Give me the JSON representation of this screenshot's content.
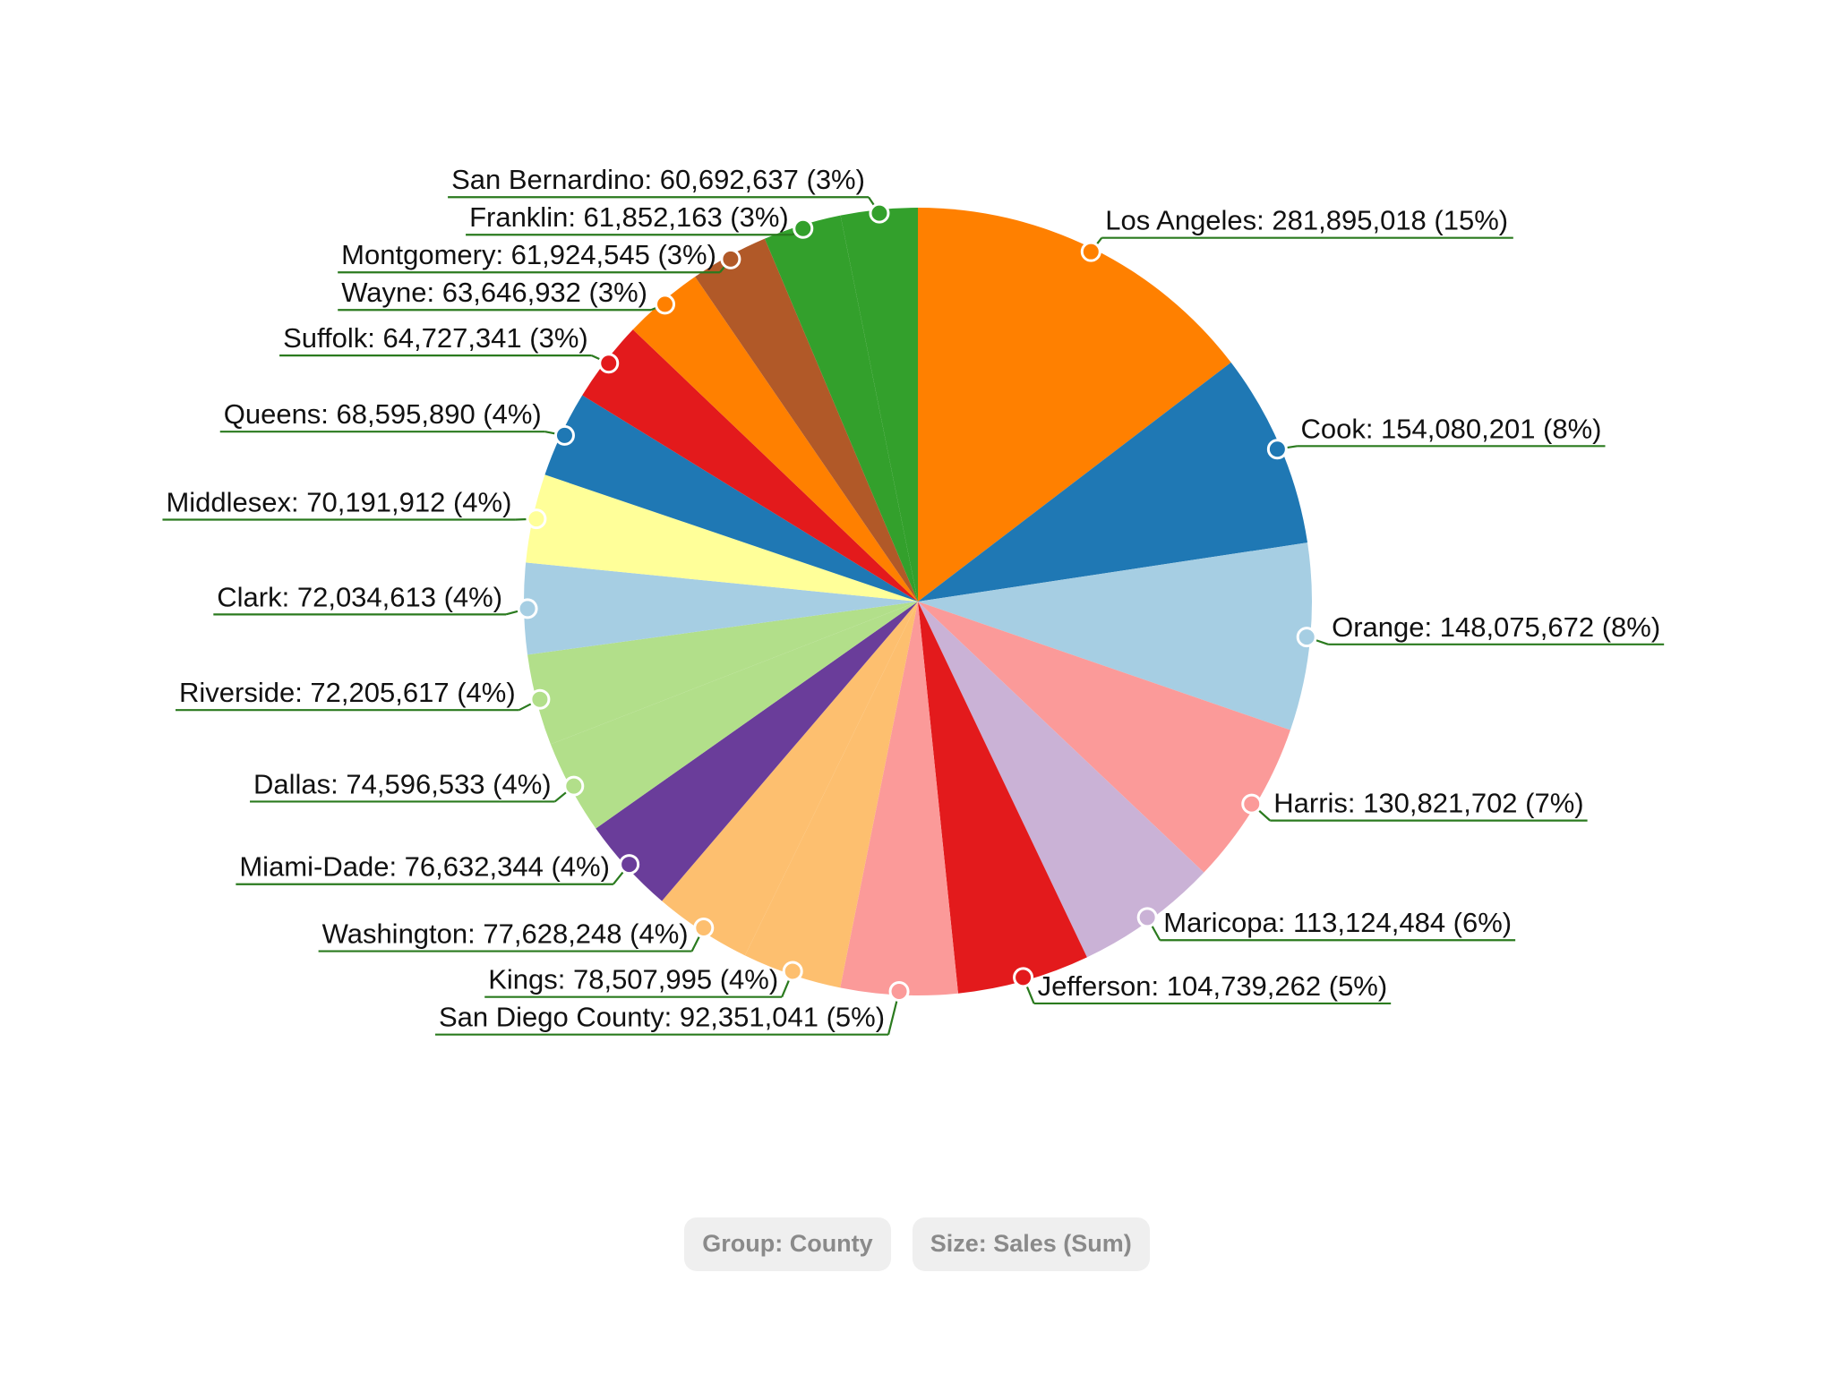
{
  "chart_data": {
    "type": "pie",
    "title": "",
    "slices": [
      {
        "label": "Los Angeles",
        "value": 281895018,
        "percent": "15%",
        "color": "#ff8000"
      },
      {
        "label": "Cook",
        "value": 154080201,
        "percent": "8%",
        "color": "#1f78b4"
      },
      {
        "label": "Orange",
        "value": 148075672,
        "percent": "8%",
        "color": "#a6cee3"
      },
      {
        "label": "Harris",
        "value": 130821702,
        "percent": "7%",
        "color": "#fb9a99"
      },
      {
        "label": "Maricopa",
        "value": 113124484,
        "percent": "6%",
        "color": "#cab2d6"
      },
      {
        "label": "Jefferson",
        "value": 104739262,
        "percent": "5%",
        "color": "#e31a1c"
      },
      {
        "label": "San Diego County",
        "value": 92351041,
        "percent": "5%",
        "color": "#fb9a99"
      },
      {
        "label": "Kings",
        "value": 78507995,
        "percent": "4%",
        "color": "#fdbf6f"
      },
      {
        "label": "Washington",
        "value": 77628248,
        "percent": "4%",
        "color": "#fdbf6f"
      },
      {
        "label": "Miami-Dade",
        "value": 76632344,
        "percent": "4%",
        "color": "#6a3d9a"
      },
      {
        "label": "Dallas",
        "value": 74596533,
        "percent": "4%",
        "color": "#b2df8a"
      },
      {
        "label": "Riverside",
        "value": 72205617,
        "percent": "4%",
        "color": "#b2df8a"
      },
      {
        "label": "Clark",
        "value": 72034613,
        "percent": "4%",
        "color": "#a6cee3"
      },
      {
        "label": "Middlesex",
        "value": 70191912,
        "percent": "4%",
        "color": "#ffff99"
      },
      {
        "label": "Queens",
        "value": 68595890,
        "percent": "4%",
        "color": "#1f78b4"
      },
      {
        "label": "Suffolk",
        "value": 64727341,
        "percent": "3%",
        "color": "#e31a1c"
      },
      {
        "label": "Wayne",
        "value": 63646932,
        "percent": "3%",
        "color": "#ff8000"
      },
      {
        "label": "Montgomery",
        "value": 61924545,
        "percent": "3%",
        "color": "#b15928"
      },
      {
        "label": "Franklin",
        "value": 61852163,
        "percent": "3%",
        "color": "#33a02c"
      },
      {
        "label": "San Bernardino",
        "value": 60692637,
        "percent": "3%",
        "color": "#33a02c"
      }
    ],
    "legend_placement": "outside labels with leader lines",
    "leader_color": "#2a7a1e"
  },
  "controls": {
    "group_label": "Group: County",
    "size_label": "Size: Sales (Sum)"
  }
}
